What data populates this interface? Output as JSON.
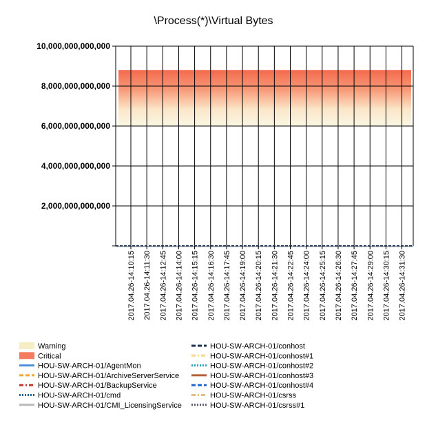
{
  "chart_data": {
    "type": "line",
    "title": "\\Process(*)\\Virtual Bytes",
    "xlabel": "",
    "ylabel": "",
    "ylim": [
      0,
      10000000000000
    ],
    "yticks": [
      {
        "value": 2000000000000,
        "label": "2,000,000,000,000"
      },
      {
        "value": 4000000000000,
        "label": "4,000,000,000,000"
      },
      {
        "value": 6000000000000,
        "label": "6,000,000,000,000"
      },
      {
        "value": 8000000000000,
        "label": "8,000,000,000,000"
      },
      {
        "value": 10000000000000,
        "label": "10,000,000,000,000"
      }
    ],
    "x": [
      "2017.04.26-14:10:15",
      "2017.04.26-14:11:30",
      "2017.04.26-14:12:45",
      "2017.04.26-14:14:00",
      "2017.04.26-14:15:15",
      "2017.04.26-14:16:30",
      "2017.04.26-14:17:45",
      "2017.04.26-14:19:00",
      "2017.04.26-14:20:15",
      "2017.04.26-14:21:30",
      "2017.04.26-14:22:45",
      "2017.04.26-14:24:00",
      "2017.04.26-14:25:15",
      "2017.04.26-14:26:30",
      "2017.04.26-14:27:45",
      "2017.04.26-14:29:00",
      "2017.04.26-14:30:15",
      "2017.04.26-14:31:30"
    ],
    "threshold_band": {
      "warning_from": 6000000000000,
      "critical_to": 8800000000000
    },
    "grid": true,
    "legend_position": "bottom",
    "legend": [
      {
        "name": "Warning",
        "kind": "band",
        "color": "#f5eec4"
      },
      {
        "name": "Critical",
        "kind": "band",
        "color": "#f47a60"
      },
      {
        "name": "HOU-SW-ARCH-01/AgentMon",
        "kind": "line",
        "color": "#4a90d9",
        "dash": "solid"
      },
      {
        "name": "HOU-SW-ARCH-01/ArchiveServerService",
        "kind": "line",
        "color": "#f0a830",
        "dash": "dash"
      },
      {
        "name": "HOU-SW-ARCH-01/BackupService",
        "kind": "line",
        "color": "#c0392b",
        "dash": "dashdot"
      },
      {
        "name": "HOU-SW-ARCH-01/cmd",
        "kind": "line",
        "color": "#1f5f8b",
        "dash": "dot"
      },
      {
        "name": "HOU-SW-ARCH-01/CMI_LicensingService",
        "kind": "line",
        "color": "#b8b8b8",
        "dash": "solid"
      },
      {
        "name": "HOU-SW-ARCH-01/conhost",
        "kind": "line",
        "color": "#1b2f4f",
        "dash": "dash"
      },
      {
        "name": "HOU-SW-ARCH-01/conhost#1",
        "kind": "line",
        "color": "#f2d98a",
        "dash": "dashdot"
      },
      {
        "name": "HOU-SW-ARCH-01/conhost#2",
        "kind": "line",
        "color": "#2aa6b8",
        "dash": "dot"
      },
      {
        "name": "HOU-SW-ARCH-01/conhost#3",
        "kind": "line",
        "color": "#b5603a",
        "dash": "solid"
      },
      {
        "name": "HOU-SW-ARCH-01/conhost#4",
        "kind": "line",
        "color": "#2266cc",
        "dash": "dash"
      },
      {
        "name": "HOU-SW-ARCH-01/csrss",
        "kind": "line",
        "color": "#e0c080",
        "dash": "dashdot"
      },
      {
        "name": "HOU-SW-ARCH-01/csrss#1",
        "kind": "line",
        "color": "#555566",
        "dash": "dot"
      }
    ],
    "series_values_approx": 0
  }
}
